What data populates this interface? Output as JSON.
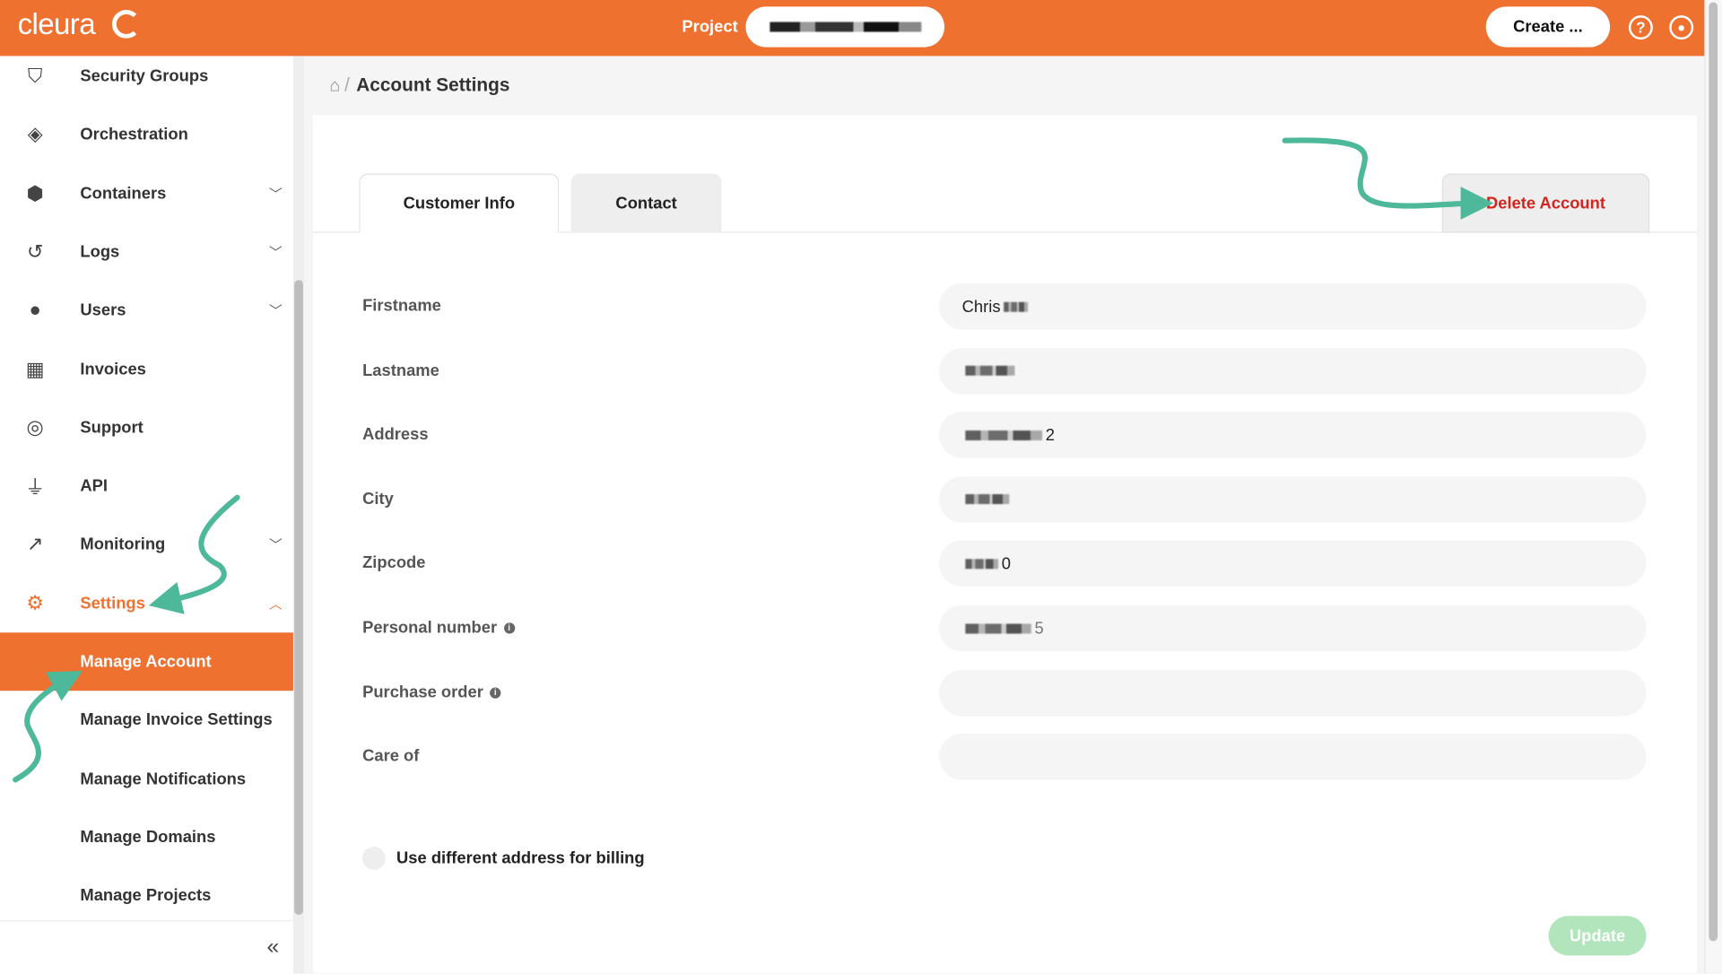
{
  "colors": {
    "brand": "#EE7130",
    "danger": "#D0261F",
    "update_disabled": "#B3E5BD",
    "annotation": "#4DB89A"
  },
  "header": {
    "logo": "cleura",
    "project_label": "Project",
    "project_value": "",
    "create_label": "Create ...",
    "help_icon": "question-circle-icon",
    "user_icon": "user-circle-icon"
  },
  "sidebar": {
    "items": [
      {
        "label": "Security Groups",
        "icon": "shield-icon",
        "chevron": false
      },
      {
        "label": "Orchestration",
        "icon": "orchestration-icon",
        "chevron": false
      },
      {
        "label": "Containers",
        "icon": "box-icon",
        "chevron": "down"
      },
      {
        "label": "Logs",
        "icon": "history-icon",
        "chevron": "down"
      },
      {
        "label": "Users",
        "icon": "user-icon",
        "chevron": "down"
      },
      {
        "label": "Invoices",
        "icon": "calculator-icon",
        "chevron": false
      },
      {
        "label": "Support",
        "icon": "lifebuoy-icon",
        "chevron": false
      },
      {
        "label": "API",
        "icon": "plug-icon",
        "chevron": false
      },
      {
        "label": "Monitoring",
        "icon": "chart-line-icon",
        "chevron": "down"
      },
      {
        "label": "Settings",
        "icon": "gear-icon",
        "chevron": "up"
      }
    ],
    "sub_items": [
      {
        "label": "Manage Account",
        "active": true
      },
      {
        "label": "Manage Invoice Settings"
      },
      {
        "label": "Manage Notifications"
      },
      {
        "label": "Manage Domains"
      },
      {
        "label": "Manage Projects"
      }
    ],
    "collapse_label": "«"
  },
  "breadcrumb": {
    "current": "Account Settings"
  },
  "tabs": [
    {
      "label": "Customer Info",
      "active": true
    },
    {
      "label": "Contact"
    }
  ],
  "delete_account_label": "Delete Account",
  "form": {
    "fields": [
      {
        "label": "Firstname",
        "value": "Chris",
        "info": false
      },
      {
        "label": "Lastname",
        "value": "",
        "info": false
      },
      {
        "label": "Address",
        "value": "2",
        "info": false
      },
      {
        "label": "City",
        "value": "",
        "info": false
      },
      {
        "label": "Zipcode",
        "value": "0",
        "info": false
      },
      {
        "label": "Personal number",
        "value": "5",
        "info": true
      },
      {
        "label": "Purchase order",
        "value": "",
        "info": true
      },
      {
        "label": "Care of",
        "value": "",
        "info": false
      }
    ],
    "billing_checkbox_label": "Use different address for billing",
    "billing_checked": false,
    "update_label": "Update"
  }
}
